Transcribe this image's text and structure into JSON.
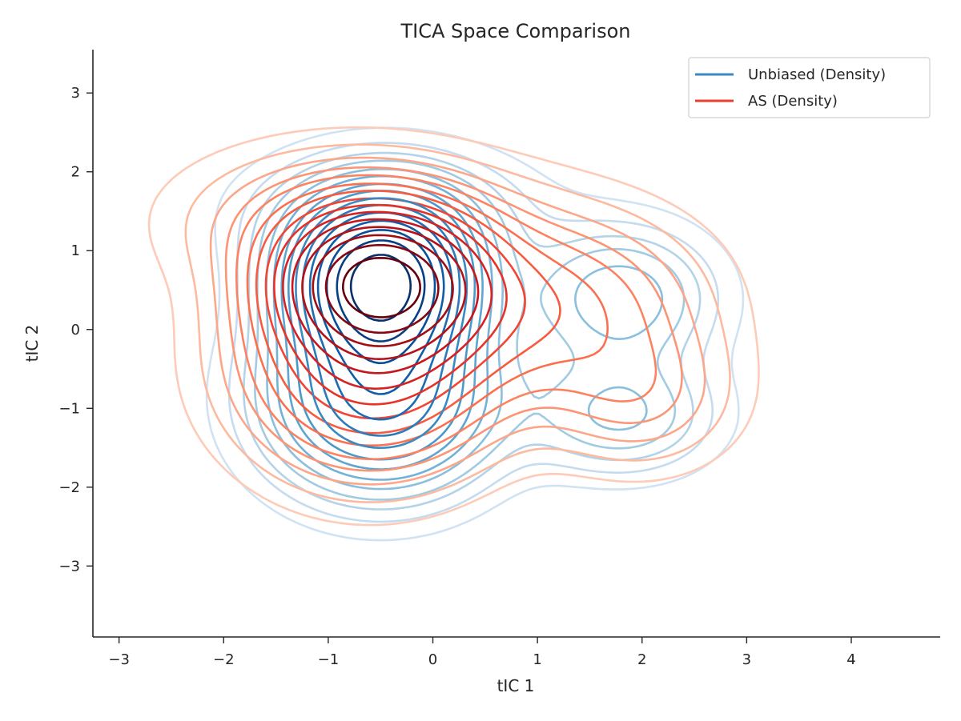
{
  "chart_data": {
    "type": "contour",
    "title": "TICA Space Comparison",
    "xlabel": "tIC 1",
    "ylabel": "tIC 2",
    "xlim": [
      -3.25,
      4.85
    ],
    "ylim": [
      -3.9,
      3.55
    ],
    "xticks": [
      -3,
      -2,
      -1,
      0,
      1,
      2,
      3,
      4
    ],
    "yticks": [
      -3,
      -2,
      -1,
      0,
      1,
      2,
      3
    ],
    "xtick_labels": [
      "−3",
      "−2",
      "−1",
      "0",
      "1",
      "2",
      "3",
      "4"
    ],
    "ytick_labels": [
      "−3",
      "−2",
      "−1",
      "0",
      "1",
      "2",
      "3"
    ],
    "legend_position": "upper right",
    "grid": false,
    "series": [
      {
        "name": "Unbiased (Density)",
        "color": "#3a8ac4",
        "colormap": "Blues",
        "components": [
          {
            "mx": -0.5,
            "my": 0.6,
            "sx": 0.55,
            "sy": 0.65,
            "w": 0.55
          },
          {
            "mx": -0.5,
            "my": -0.9,
            "sx": 0.7,
            "sy": 0.75,
            "w": 0.3
          },
          {
            "mx": 1.8,
            "my": 0.4,
            "sx": 0.6,
            "sy": 0.6,
            "w": 0.12
          },
          {
            "mx": 1.8,
            "my": -1.1,
            "sx": 0.6,
            "sy": 0.5,
            "w": 0.1
          },
          {
            "mx": -0.4,
            "my": 1.5,
            "sx": 0.9,
            "sy": 0.55,
            "w": 0.08
          }
        ],
        "levels": [
          0.03,
          0.06,
          0.09,
          0.12,
          0.16,
          0.2,
          0.25,
          0.3,
          0.36,
          0.42,
          0.49,
          0.57,
          0.66,
          0.76,
          0.88
        ]
      },
      {
        "name": "AS (Density)",
        "color": "#e8402f",
        "colormap": "Reds",
        "components": [
          {
            "mx": -0.5,
            "my": 0.6,
            "sx": 0.6,
            "sy": 0.55,
            "w": 0.6
          },
          {
            "mx": -0.6,
            "my": -0.4,
            "sx": 0.8,
            "sy": 0.9,
            "w": 0.3
          },
          {
            "mx": 1.2,
            "my": 0.3,
            "sx": 0.9,
            "sy": 0.8,
            "w": 0.15
          },
          {
            "mx": 2.0,
            "my": -0.9,
            "sx": 0.6,
            "sy": 0.6,
            "w": 0.08
          },
          {
            "mx": -0.8,
            "my": 1.4,
            "sx": 1.0,
            "sy": 0.6,
            "w": 0.12
          }
        ],
        "levels": [
          0.025,
          0.05,
          0.08,
          0.11,
          0.14,
          0.18,
          0.22,
          0.27,
          0.32,
          0.38,
          0.45,
          0.53,
          0.62,
          0.73,
          0.86
        ]
      }
    ]
  }
}
